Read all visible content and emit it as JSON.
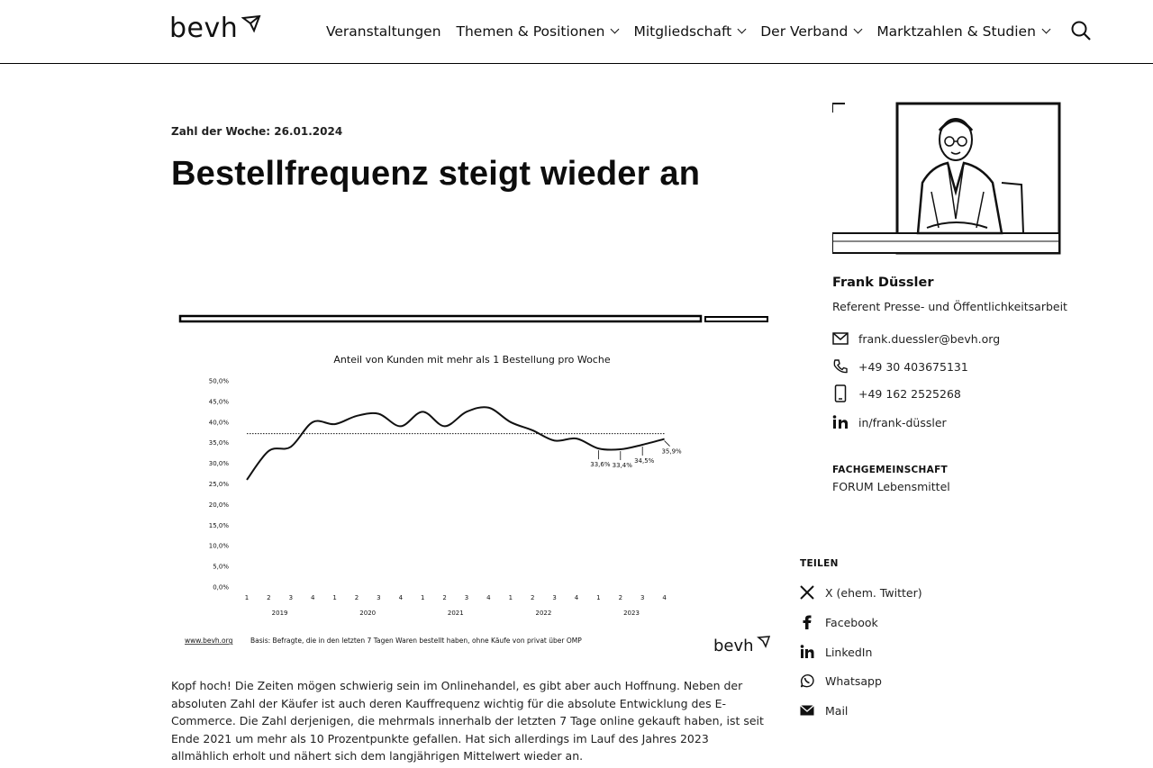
{
  "header": {
    "logo_text": "bevh",
    "nav": [
      {
        "label": "Veranstaltungen",
        "has_dropdown": false
      },
      {
        "label": "Themen & Positionen",
        "has_dropdown": true
      },
      {
        "label": "Mitgliedschaft",
        "has_dropdown": true
      },
      {
        "label": "Der Verband",
        "has_dropdown": true
      },
      {
        "label": "Marktzahlen & Studien",
        "has_dropdown": true
      }
    ],
    "search_icon": "search-icon"
  },
  "article": {
    "kicker": "Zahl der Woche: 26.01.2024",
    "title": "Bestellfrequenz steigt wieder an",
    "body": "Kopf hoch! Die Zeiten mögen schwierig sein im Onlinehandel, es gibt aber auch Hoffnung. Neben der absoluten Zahl der Käufer ist auch deren Kauffrequenz wichtig für die absolute Entwicklung des E-Commerce. Die Zahl derjenigen, die mehrmals innerhalb der letzten 7 Tage online gekauft haben, ist seit Ende 2021 um mehr als 10 Prozentpunkte gefallen. Hat sich allerdings im Lauf des Jahres 2023 allmählich erholt und nähert sich dem langjährigen Mittelwert wieder an."
  },
  "chart_data": {
    "type": "line",
    "title": "Anteil von Kunden mit mehr als 1 Bestellung pro Woche",
    "xlabel": "",
    "ylabel": "",
    "ylim": [
      0,
      50
    ],
    "yticks": [
      "0,0%",
      "5,0%",
      "10,0%",
      "15,0%",
      "20,0%",
      "25,0%",
      "30,0%",
      "35,0%",
      "40,0%",
      "45,0%",
      "50,0%"
    ],
    "quarters": [
      "1",
      "2",
      "3",
      "4",
      "1",
      "2",
      "3",
      "4",
      "1",
      "2",
      "3",
      "4",
      "1",
      "2",
      "3",
      "4",
      "1",
      "2",
      "3",
      "4"
    ],
    "years": [
      "2019",
      "2020",
      "2021",
      "2022",
      "2023"
    ],
    "series": [
      {
        "values": [
          26.0,
          33.0,
          34.0,
          40.0,
          39.5,
          41.5,
          42.0,
          39.0,
          42.5,
          39.0,
          42.5,
          43.5,
          40.0,
          38.0,
          35.5,
          36.0,
          33.6,
          33.4,
          34.5,
          35.9
        ]
      }
    ],
    "mean_line": 37.2,
    "annotations": [
      {
        "index": 16,
        "label": "33,6%"
      },
      {
        "index": 17,
        "label": "33,4%"
      },
      {
        "index": 18,
        "label": "34,5%"
      },
      {
        "index": 19,
        "label": "35,9%"
      }
    ],
    "source_url": "www.bevh.org",
    "footnote": "Basis: Befragte, die in den letzten 7 Tagen Waren bestellt haben, ohne Käufe von privat über OMP",
    "logo": "bevh"
  },
  "sidebar": {
    "name": "Frank Düssler",
    "role": "Referent Presse- und Öffentlichkeitsarbeit",
    "email": "frank.duessler@bevh.org",
    "phone": "+49 30 403675131",
    "mobile": "+49 162 2525268",
    "linkedin": "in/frank-düssler",
    "fg_label": "FACHGEMEINSCHAFT",
    "fg_value": "FORUM Lebensmittel",
    "share_label": "TEILEN",
    "share": [
      {
        "icon": "x-icon",
        "label": "X (ehem. Twitter)"
      },
      {
        "icon": "facebook-icon",
        "label": "Facebook"
      },
      {
        "icon": "linkedin-icon",
        "label": "LinkedIn"
      },
      {
        "icon": "whatsapp-icon",
        "label": "Whatsapp"
      },
      {
        "icon": "mail-icon",
        "label": "Mail"
      }
    ]
  }
}
